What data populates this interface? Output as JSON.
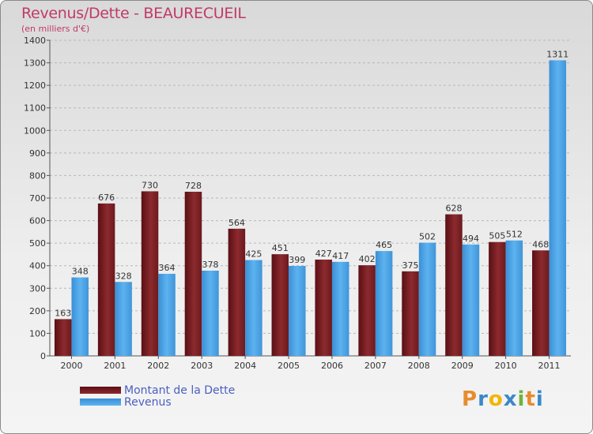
{
  "title": "Revenus/Dette - BEAURECUEIL",
  "subtitle": "(en milliers d'€)",
  "logo": {
    "letters": [
      "P",
      "r",
      "o",
      "x",
      "i",
      "t",
      "i"
    ],
    "colors": [
      "#e88b2e",
      "#3b88c9",
      "#f2b600",
      "#3b88c9",
      "#6cb33f",
      "#e88b2e",
      "#3b88c9"
    ]
  },
  "chart_data": {
    "type": "bar",
    "title": "Revenus/Dette - BEAURECUEIL",
    "ylabel": "(en milliers d'€)",
    "xlabel": "",
    "ylim": [
      0,
      1400
    ],
    "yticks": [
      0,
      100,
      200,
      300,
      400,
      500,
      600,
      700,
      800,
      900,
      1000,
      1100,
      1200,
      1300,
      1400
    ],
    "grid": true,
    "legend_position": "bottom-left",
    "categories": [
      "2000",
      "2001",
      "2002",
      "2003",
      "2004",
      "2005",
      "2006",
      "2007",
      "2008",
      "2009",
      "2010",
      "2011"
    ],
    "series": [
      {
        "name": "Montant de la Dette",
        "color": "#7a1e22",
        "values": [
          163,
          676,
          730,
          728,
          564,
          451,
          427,
          402,
          375,
          628,
          505,
          468
        ]
      },
      {
        "name": "Revenus",
        "color": "#4aa3e3",
        "values": [
          348,
          328,
          364,
          378,
          425,
          399,
          417,
          465,
          502,
          494,
          512,
          1311
        ]
      }
    ]
  }
}
